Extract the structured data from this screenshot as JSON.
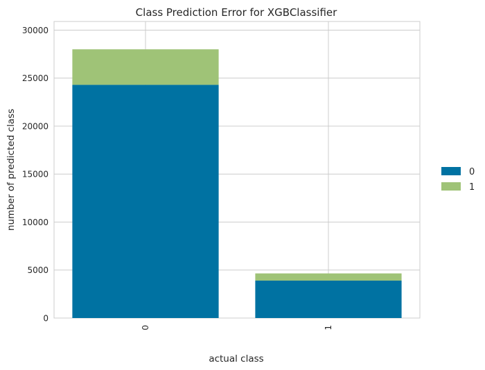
{
  "chart_data": {
    "type": "bar",
    "stacked": true,
    "title": "Class Prediction Error for XGBClassifier",
    "xlabel": "actual class",
    "ylabel": "number of predicted class",
    "categories": [
      "0",
      "1"
    ],
    "series": [
      {
        "name": "0",
        "color": "#0072a2",
        "values": [
          24300,
          3900
        ]
      },
      {
        "name": "1",
        "color": "#9fc377",
        "values": [
          3700,
          750
        ]
      }
    ],
    "ylim": [
      0,
      30900
    ],
    "yticks": [
      0,
      5000,
      10000,
      15000,
      20000,
      25000,
      30000
    ],
    "grid": true,
    "legend_position": "right",
    "xtick_rotation": "vertical"
  }
}
